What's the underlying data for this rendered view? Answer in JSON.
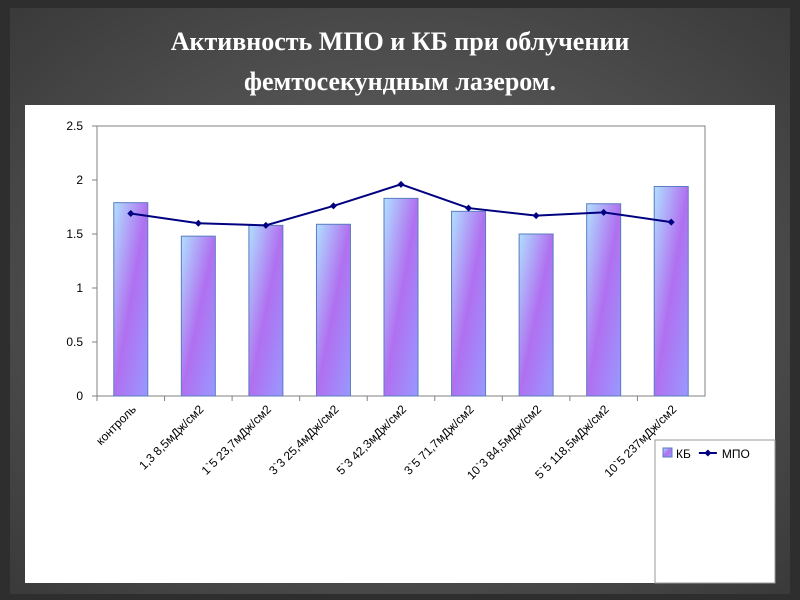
{
  "chart_data": {
    "type": "bar_line",
    "title": [
      "Активность МПО и КБ при облучении",
      "фемтосекундным лазером."
    ],
    "categories": [
      "контроль",
      "1,3 8,5мДж/см2",
      "1`5 23,7мДж/см2",
      "3`3 25,4мДж/см2",
      "5`3 42,3мДж/см2",
      "3`5 71,7мДж/см2",
      "10`3 84,5мДж/см2",
      "5`5 118,5мДж/см2",
      "10`5 237мДж/см2"
    ],
    "series": [
      {
        "name": "КБ",
        "type": "bar",
        "color": "#9999ff",
        "values": [
          1.79,
          1.48,
          1.58,
          1.59,
          1.83,
          1.71,
          1.5,
          1.78,
          1.94
        ]
      },
      {
        "name": "МПО",
        "type": "line",
        "color": "#000080",
        "values": [
          1.69,
          1.6,
          1.58,
          1.76,
          1.96,
          1.74,
          1.67,
          1.7,
          1.61
        ]
      }
    ],
    "ylim": [
      0,
      2.5
    ],
    "yticks": [
      0,
      0.5,
      1,
      1.5,
      2,
      2.5
    ],
    "grid": false
  }
}
